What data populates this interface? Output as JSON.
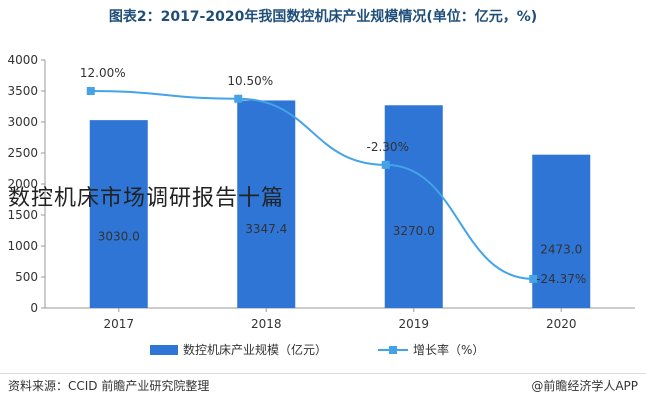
{
  "title": "图表2：2017-2020年我国数控机床产业规模情况(单位：亿元，%)",
  "overlay_text": "数控机床市场调研报告十篇",
  "footer": {
    "source": "资料来源：CCID 前瞻产业研究院整理",
    "brand": "@前瞻经济学人APP"
  },
  "colors": {
    "bar": "#2e75d6",
    "line": "#44a3e6"
  },
  "chart_data": {
    "type": "bar",
    "categories": [
      "2017",
      "2018",
      "2019",
      "2020"
    ],
    "series": [
      {
        "name": "数控机床产业规模（亿元）",
        "type": "bar",
        "values": [
          3030.0,
          3347.4,
          3270.0,
          2473.0
        ],
        "labels": [
          "3030.0",
          "3347.4",
          "3270.0",
          "2473.0"
        ]
      },
      {
        "name": "增长率（%）",
        "type": "line",
        "values": [
          12.0,
          10.5,
          -2.3,
          -24.37
        ],
        "labels": [
          "12.00%",
          "10.50%",
          "-2.30%",
          "-24.37%"
        ]
      }
    ],
    "ylim": [
      0,
      4000
    ],
    "yticks": [
      "0",
      "500",
      "1000",
      "1500",
      "2000",
      "2500",
      "3000",
      "3500",
      "4000"
    ],
    "legend": "bottom",
    "grid": false
  }
}
